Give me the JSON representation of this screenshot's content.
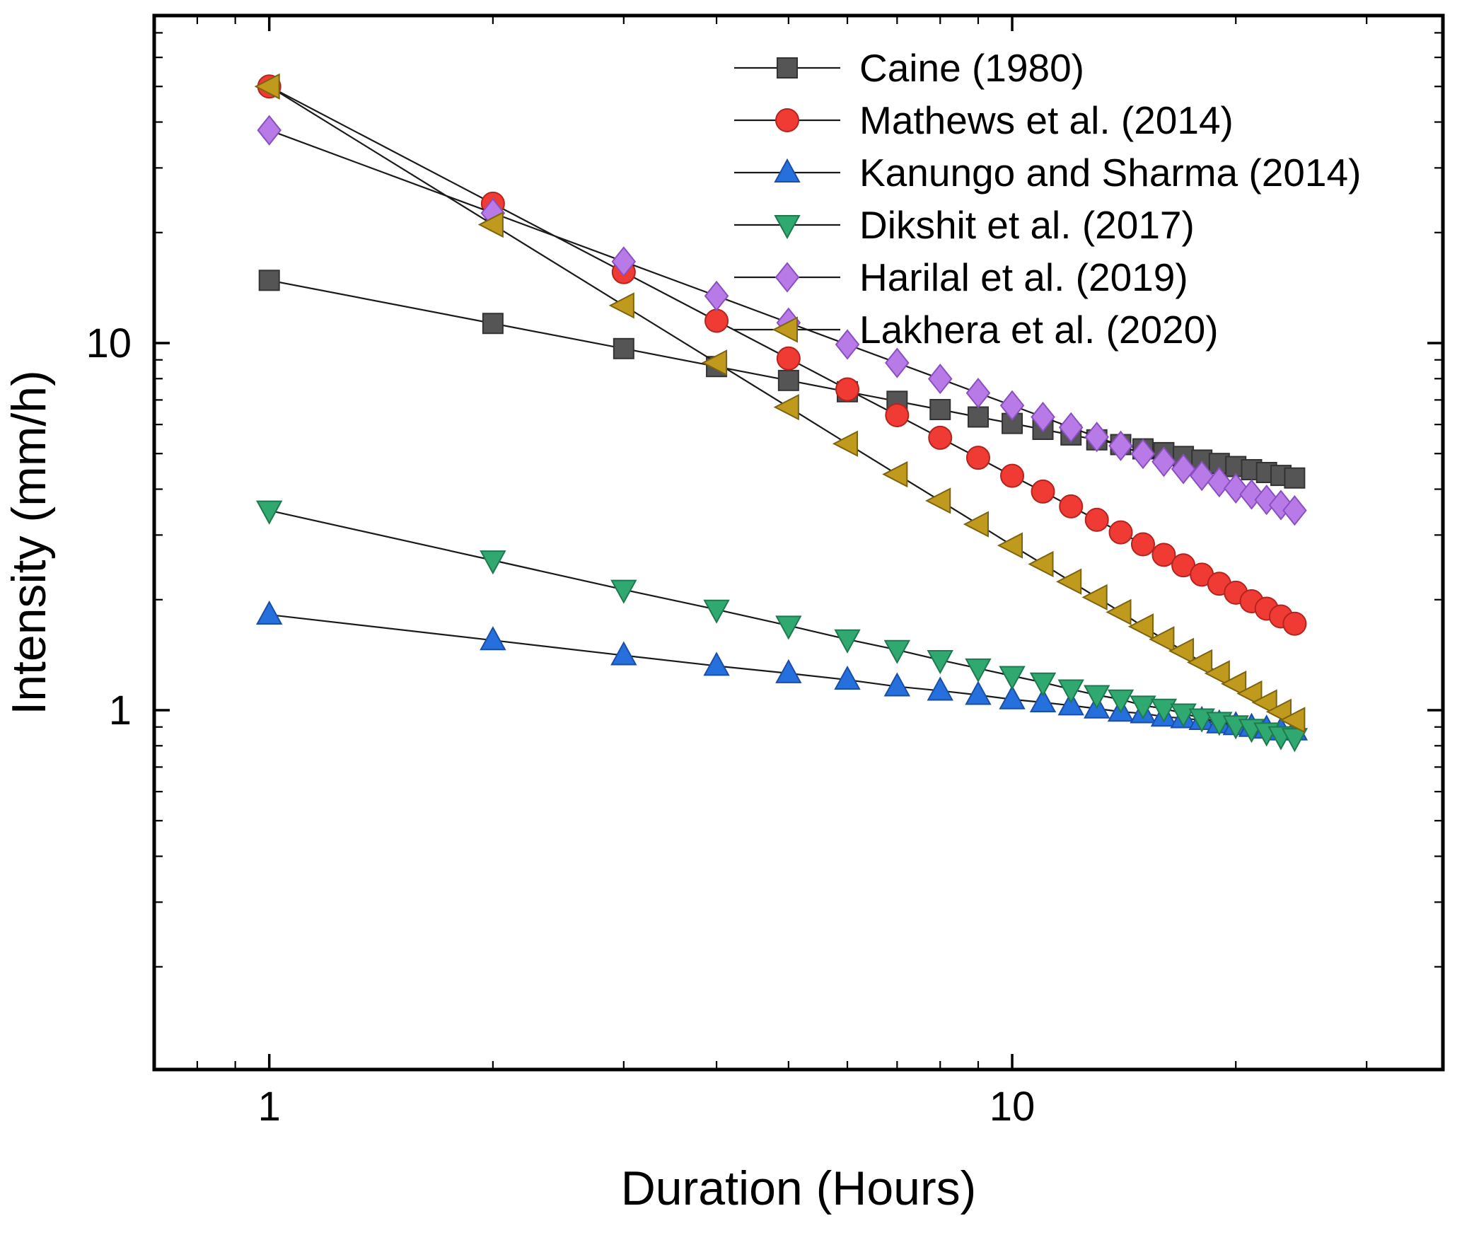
{
  "figure": {
    "background_color": "#ffffff",
    "frame_color": "#000000",
    "text_color": "#000000"
  },
  "chart_data": {
    "type": "line",
    "title": "",
    "xlabel": "Duration (Hours)",
    "ylabel": "Intensity (mm/h)",
    "x_scale": "log",
    "y_scale": "log",
    "xlim": [
      0.7,
      38
    ],
    "ylim": [
      0.105,
      78
    ],
    "x_major_ticks": [
      1,
      10
    ],
    "x_tick_labels": [
      "1",
      "10"
    ],
    "y_major_ticks": [
      1,
      10
    ],
    "y_tick_labels": [
      "1",
      "10"
    ],
    "grid": false,
    "legend_position": "top-right-inside",
    "connector_line_color": "#1a1a1a",
    "x": [
      1,
      2,
      3,
      4,
      5,
      6,
      7,
      8,
      9,
      10,
      11,
      12,
      13,
      14,
      15,
      16,
      17,
      18,
      19,
      20,
      21,
      22,
      23,
      24
    ],
    "series": [
      {
        "name": "Caine (1980)",
        "marker": "square",
        "color": "#555555",
        "edge_color": "#333333",
        "values": [
          14.82,
          11.31,
          9.66,
          8.63,
          7.91,
          7.37,
          6.94,
          6.59,
          6.29,
          6.04,
          5.82,
          5.62,
          5.45,
          5.29,
          5.15,
          5.03,
          4.91,
          4.8,
          4.7,
          4.61,
          4.52,
          4.44,
          4.36,
          4.29
        ]
      },
      {
        "name": "Mathews et al. (2014)",
        "marker": "circle",
        "color": "#ef3b33",
        "edge_color": "#b3241f",
        "values": [
          50.0,
          23.98,
          15.6,
          11.5,
          9.08,
          7.48,
          6.36,
          5.52,
          4.87,
          4.35,
          3.94,
          3.59,
          3.3,
          3.05,
          2.83,
          2.65,
          2.48,
          2.34,
          2.21,
          2.09,
          1.98,
          1.89,
          1.8,
          1.72
        ]
      },
      {
        "name": "Kanungo and Sharma (2014)",
        "marker": "triangle-up",
        "color": "#2570dd",
        "edge_color": "#1a4ea8",
        "values": [
          1.82,
          1.55,
          1.41,
          1.32,
          1.26,
          1.21,
          1.16,
          1.13,
          1.1,
          1.07,
          1.05,
          1.03,
          1.01,
          0.99,
          0.98,
          0.96,
          0.95,
          0.94,
          0.92,
          0.91,
          0.9,
          0.89,
          0.88,
          0.88
        ]
      },
      {
        "name": "Dikshit et al. (2017)",
        "marker": "triangle-down",
        "color": "#30a970",
        "edge_color": "#1e7a4e",
        "values": [
          3.5,
          2.56,
          2.13,
          1.88,
          1.7,
          1.56,
          1.46,
          1.37,
          1.3,
          1.24,
          1.19,
          1.14,
          1.1,
          1.07,
          1.03,
          1.01,
          0.98,
          0.95,
          0.93,
          0.91,
          0.89,
          0.87,
          0.85,
          0.84
        ]
      },
      {
        "name": "Harilal et al. (2019)",
        "marker": "diamond",
        "color": "#b77ae6",
        "edge_color": "#8a4fc0",
        "values": [
          38.0,
          22.6,
          16.67,
          13.44,
          11.36,
          9.91,
          8.83,
          7.99,
          7.31,
          6.76,
          6.29,
          5.89,
          5.55,
          5.25,
          4.99,
          4.75,
          4.54,
          4.35,
          4.18,
          4.02,
          3.87,
          3.74,
          3.62,
          3.5
        ]
      },
      {
        "name": "Lakhera et al. (2020)",
        "marker": "triangle-left",
        "color": "#c09a1c",
        "edge_color": "#7d6410",
        "values": [
          50.0,
          21.02,
          12.66,
          8.84,
          6.69,
          5.32,
          4.39,
          3.72,
          3.21,
          2.81,
          2.5,
          2.24,
          2.03,
          1.85,
          1.69,
          1.56,
          1.45,
          1.35,
          1.26,
          1.18,
          1.11,
          1.05,
          0.99,
          0.94
        ]
      }
    ]
  }
}
